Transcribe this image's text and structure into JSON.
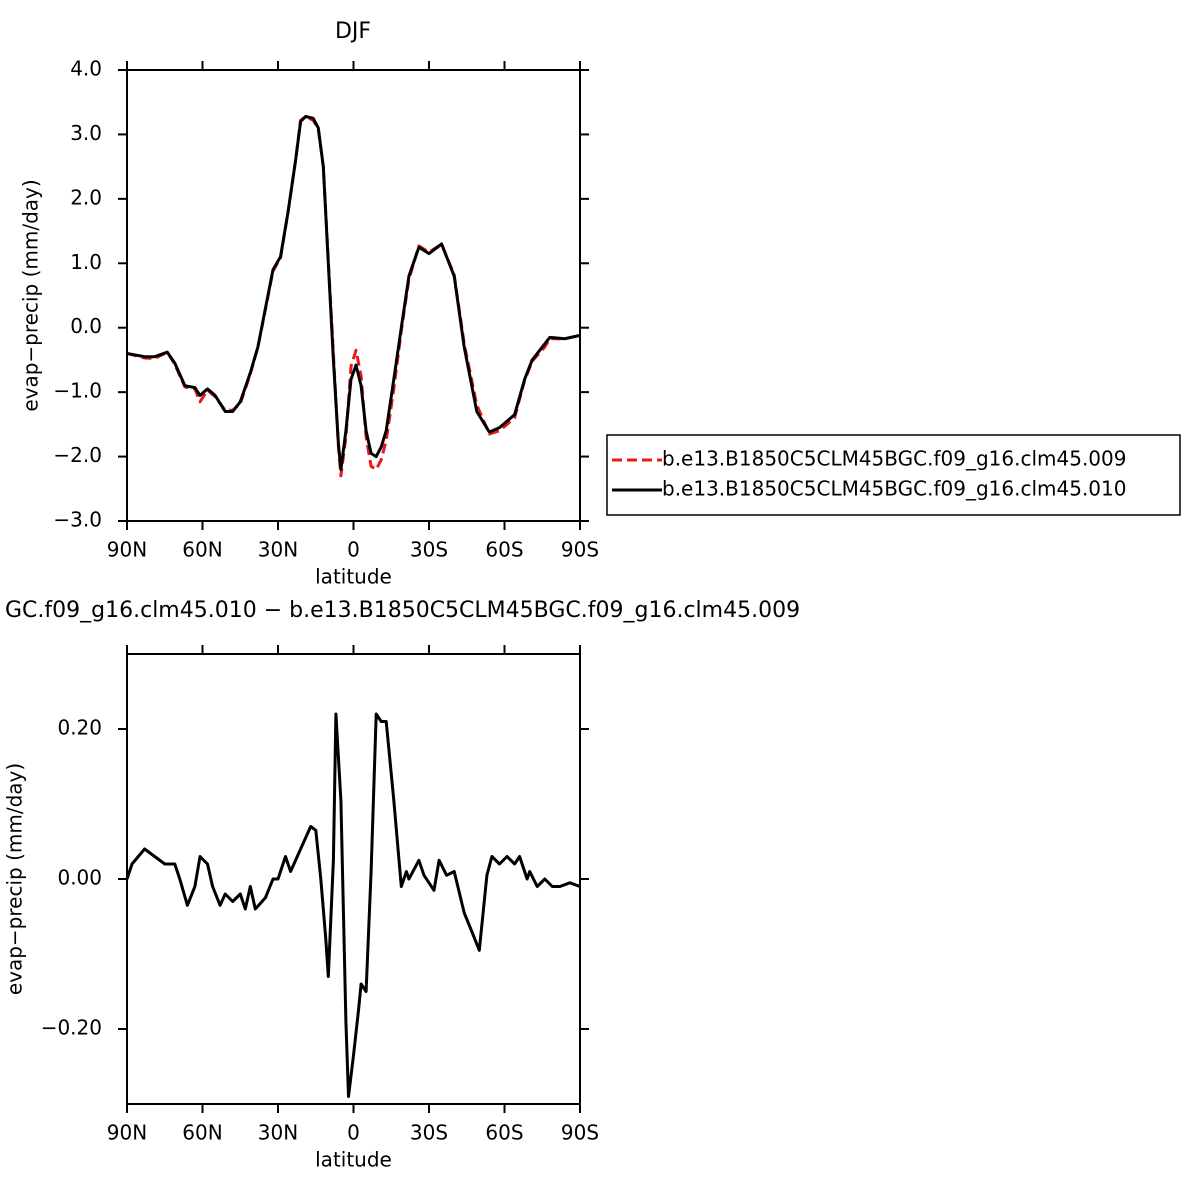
{
  "chart_data": [
    {
      "type": "line",
      "title": "DJF",
      "x_label": "latitude",
      "y_label": "evap−precip (mm/day)",
      "xlim": [
        90,
        -90
      ],
      "ylim": [
        -3,
        4
      ],
      "xticks": [
        {
          "value": 90,
          "label": "90N"
        },
        {
          "value": 60,
          "label": "60N"
        },
        {
          "value": 30,
          "label": "30N"
        },
        0,
        {
          "value": -30,
          "label": "30S"
        },
        {
          "value": -60,
          "label": "60S"
        },
        {
          "value": -90,
          "label": "90S"
        }
      ],
      "yticks": [
        {
          "value": -3,
          "label": "−3.0"
        },
        {
          "value": -2,
          "label": "−2.0"
        },
        {
          "value": -1,
          "label": "−1.0"
        },
        {
          "value": 0,
          "label": "0.0"
        },
        {
          "value": 1,
          "label": "1.0"
        },
        {
          "value": 2,
          "label": "2.0"
        },
        {
          "value": 3,
          "label": "3.0"
        },
        {
          "value": 4,
          "label": "4.0"
        }
      ],
      "legend": "right",
      "x": [
        90,
        83,
        79,
        74,
        71,
        67,
        63,
        61,
        58,
        55,
        51,
        48,
        45,
        41,
        38,
        35,
        32,
        29,
        26,
        23,
        21,
        19,
        16,
        14,
        12,
        10,
        8,
        6,
        5,
        3,
        1,
        -1,
        -3,
        -5,
        -7,
        -9,
        -11,
        -13,
        -16,
        -19,
        -22,
        -26,
        -30,
        -35,
        -40,
        -44,
        -49,
        -54,
        -58,
        -64,
        -68,
        -71,
        -76,
        -78,
        -84,
        -90
      ],
      "series": [
        {
          "name": "b.e13.B1850C5CLM45BGC.f09_g16.clm45.009",
          "color": "#e8191c",
          "line_style": "dashed",
          "values": [
            -0.4,
            -0.47,
            -0.48,
            -0.38,
            -0.57,
            -0.92,
            -0.95,
            -1.15,
            -0.97,
            -1.07,
            -1.28,
            -1.28,
            -1.18,
            -0.72,
            -0.3,
            0.28,
            0.88,
            1.08,
            1.8,
            2.6,
            3.22,
            3.28,
            3.22,
            3.08,
            2.5,
            1.05,
            -0.4,
            -1.85,
            -2.3,
            -1.7,
            -0.6,
            -0.35,
            -0.75,
            -1.7,
            -2.15,
            -2.2,
            -2.05,
            -1.75,
            -0.95,
            -0.05,
            0.75,
            1.27,
            1.17,
            1.3,
            0.82,
            -0.25,
            -1.2,
            -1.65,
            -1.6,
            -1.4,
            -0.82,
            -0.52,
            -0.3,
            -0.17,
            -0.17,
            -0.12
          ]
        },
        {
          "name": "b.e13.B1850C5CLM45BGC.f09_g16.clm45.010",
          "color": "#000000",
          "line_style": "solid",
          "values": [
            -0.4,
            -0.45,
            -0.45,
            -0.38,
            -0.55,
            -0.9,
            -0.93,
            -1.05,
            -0.95,
            -1.05,
            -1.3,
            -1.3,
            -1.15,
            -0.7,
            -0.3,
            0.3,
            0.9,
            1.1,
            1.8,
            2.6,
            3.2,
            3.28,
            3.25,
            3.1,
            2.5,
            1.0,
            -0.5,
            -1.8,
            -2.2,
            -1.6,
            -0.8,
            -0.58,
            -0.9,
            -1.6,
            -1.95,
            -2.0,
            -1.85,
            -1.6,
            -0.8,
            0.0,
            0.8,
            1.25,
            1.15,
            1.3,
            0.8,
            -0.3,
            -1.3,
            -1.62,
            -1.55,
            -1.35,
            -0.8,
            -0.5,
            -0.25,
            -0.15,
            -0.17,
            -0.12
          ]
        }
      ]
    },
    {
      "type": "line",
      "title": "GC.f09_g16.clm45.010 − b.e13.B1850C5CLM45BGC.f09_g16.clm45.009",
      "x_label": "latitude",
      "y_label": "evap−precip (mm/day)",
      "xlim": [
        90,
        -90
      ],
      "ylim": [
        -0.3,
        0.3
      ],
      "xticks": [
        {
          "value": 90,
          "label": "90N"
        },
        {
          "value": 60,
          "label": "60N"
        },
        {
          "value": 30,
          "label": "30N"
        },
        0,
        {
          "value": -30,
          "label": "30S"
        },
        {
          "value": -60,
          "label": "60S"
        },
        {
          "value": -90,
          "label": "90S"
        }
      ],
      "yticks": [
        {
          "value": -0.2,
          "label": "−0.20"
        },
        {
          "value": 0,
          "label": "0.00"
        },
        {
          "value": 0.2,
          "label": "0.20"
        }
      ],
      "x": [
        90,
        88,
        83,
        79,
        75,
        71,
        69,
        66,
        63,
        61,
        58,
        56,
        53,
        51,
        48,
        45,
        43,
        41,
        39,
        35,
        32,
        30,
        27,
        25,
        21,
        17,
        15,
        13,
        11,
        10,
        8,
        7,
        5,
        3,
        2,
        0,
        -2,
        -3,
        -5,
        -7,
        -9,
        -11,
        -13,
        -16,
        -19,
        -21,
        -22,
        -26,
        -28,
        -32,
        -34,
        -37,
        -40,
        -44,
        -47,
        -50,
        -53,
        -55,
        -58,
        -61,
        -64,
        -66,
        -69,
        -70,
        -73,
        -76,
        -79,
        -82,
        -86,
        -90
      ],
      "series": [
        {
          "color": "#000000",
          "line_style": "solid",
          "values": [
            0,
            0.02,
            0.04,
            0.03,
            0.02,
            0.02,
            0,
            -0.035,
            -0.01,
            0.03,
            0.02,
            -0.01,
            -0.035,
            -0.02,
            -0.03,
            -0.02,
            -0.04,
            -0.01,
            -0.04,
            -0.025,
            0,
            0,
            0.03,
            0.01,
            0.04,
            0.07,
            0.065,
            0,
            -0.08,
            -0.13,
            0.025,
            0.22,
            0.105,
            -0.19,
            -0.29,
            -0.235,
            -0.175,
            -0.14,
            -0.15,
            0.01,
            0.22,
            0.21,
            0.21,
            0.105,
            -0.01,
            0.01,
            0,
            0.025,
            0.005,
            -0.015,
            0.025,
            0.005,
            0.01,
            -0.045,
            -0.07,
            -0.095,
            0.005,
            0.03,
            0.02,
            0.03,
            0.02,
            0.03,
            0,
            0.01,
            -0.01,
            0,
            -0.01,
            -0.01,
            -0.005,
            -0.01
          ]
        }
      ]
    }
  ]
}
